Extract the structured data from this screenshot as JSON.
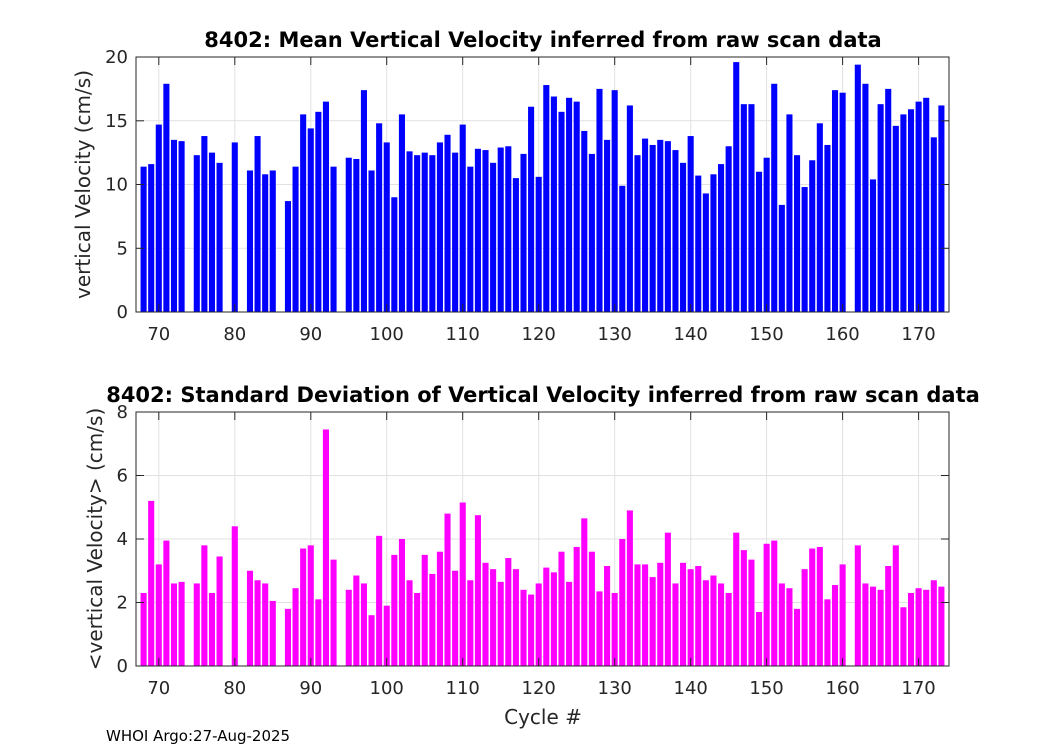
{
  "footer": "WHOI Argo:27-Aug-2025",
  "chart_data": [
    {
      "type": "bar",
      "title": "8402: Mean Vertical Velocity inferred from raw scan data",
      "xlabel": "",
      "ylabel": "vertical Velocity (cm/s)",
      "xlim": [
        67,
        174
      ],
      "ylim": [
        0,
        20
      ],
      "xticks": [
        70,
        80,
        90,
        100,
        110,
        120,
        130,
        140,
        150,
        160,
        170
      ],
      "yticks": [
        0,
        5,
        10,
        15,
        20
      ],
      "grid": true,
      "color": "#0000ff",
      "x": [
        68,
        69,
        70,
        71,
        72,
        73,
        75,
        76,
        77,
        78,
        80,
        82,
        83,
        84,
        85,
        87,
        88,
        89,
        90,
        91,
        92,
        93,
        95,
        96,
        97,
        98,
        99,
        100,
        101,
        102,
        103,
        104,
        105,
        106,
        107,
        108,
        109,
        110,
        111,
        112,
        113,
        114,
        115,
        116,
        117,
        118,
        119,
        120,
        121,
        122,
        123,
        124,
        125,
        126,
        127,
        128,
        129,
        130,
        131,
        132,
        133,
        134,
        135,
        136,
        137,
        138,
        139,
        140,
        141,
        142,
        143,
        144,
        145,
        146,
        147,
        148,
        149,
        150,
        151,
        152,
        153,
        154,
        155,
        156,
        157,
        158,
        159,
        160,
        162,
        163,
        164,
        165,
        166,
        167,
        168,
        169,
        170,
        171,
        172,
        173
      ],
      "values": [
        11.4,
        11.6,
        14.7,
        17.9,
        13.5,
        13.4,
        12.3,
        13.8,
        12.5,
        11.7,
        13.3,
        11.1,
        13.8,
        10.8,
        11.1,
        8.7,
        11.4,
        15.5,
        14.4,
        15.7,
        16.5,
        11.4,
        12.1,
        12.0,
        17.4,
        11.1,
        14.8,
        13.3,
        9.0,
        15.5,
        12.6,
        12.3,
        12.5,
        12.3,
        13.3,
        13.9,
        12.5,
        14.7,
        11.4,
        12.8,
        12.7,
        11.7,
        12.9,
        13.0,
        10.5,
        12.4,
        16.1,
        10.6,
        17.8,
        16.9,
        15.7,
        16.8,
        16.5,
        14.2,
        12.4,
        17.5,
        13.5,
        17.4,
        9.9,
        16.2,
        12.3,
        13.6,
        13.1,
        13.5,
        13.4,
        12.7,
        11.7,
        13.8,
        10.7,
        9.3,
        10.8,
        11.6,
        13.0,
        19.6,
        16.3,
        16.3,
        11.0,
        12.1,
        17.9,
        8.4,
        15.5,
        12.3,
        9.8,
        11.9,
        14.8,
        13.1,
        17.4,
        17.2,
        19.4,
        17.9,
        10.4,
        16.3,
        17.5,
        14.6,
        15.5,
        15.9,
        16.5,
        16.8,
        13.7,
        16.2
      ]
    },
    {
      "type": "bar",
      "title": "8402: Standard Deviation of Vertical Velocity inferred from raw scan data",
      "xlabel": "Cycle #",
      "ylabel": "<vertical Velocity> (cm/s)",
      "xlim": [
        67,
        174
      ],
      "ylim": [
        0,
        8
      ],
      "xticks": [
        70,
        80,
        90,
        100,
        110,
        120,
        130,
        140,
        150,
        160,
        170
      ],
      "yticks": [
        0,
        2,
        4,
        6,
        8
      ],
      "grid": true,
      "color": "#ff00ff",
      "x": [
        68,
        69,
        70,
        71,
        72,
        73,
        75,
        76,
        77,
        78,
        80,
        82,
        83,
        84,
        85,
        87,
        88,
        89,
        90,
        91,
        92,
        93,
        95,
        96,
        97,
        98,
        99,
        100,
        101,
        102,
        103,
        104,
        105,
        106,
        107,
        108,
        109,
        110,
        111,
        112,
        113,
        114,
        115,
        116,
        117,
        118,
        119,
        120,
        121,
        122,
        123,
        124,
        125,
        126,
        127,
        128,
        129,
        130,
        131,
        132,
        133,
        134,
        135,
        136,
        137,
        138,
        139,
        140,
        141,
        142,
        143,
        144,
        145,
        146,
        147,
        148,
        149,
        150,
        151,
        152,
        153,
        154,
        155,
        156,
        157,
        158,
        159,
        160,
        162,
        163,
        164,
        165,
        166,
        167,
        168,
        169,
        170,
        171,
        172,
        173
      ],
      "values": [
        2.3,
        5.2,
        3.2,
        3.95,
        2.6,
        2.65,
        2.6,
        3.8,
        2.3,
        3.45,
        4.4,
        3.0,
        2.7,
        2.6,
        2.05,
        1.8,
        2.45,
        3.7,
        3.8,
        2.1,
        7.45,
        3.35,
        2.4,
        2.85,
        2.6,
        1.6,
        4.1,
        1.9,
        3.5,
        4.0,
        2.7,
        2.3,
        3.5,
        2.9,
        3.6,
        4.8,
        3.0,
        5.15,
        2.7,
        4.75,
        3.25,
        3.05,
        2.65,
        3.4,
        3.05,
        2.4,
        2.25,
        2.6,
        3.1,
        2.95,
        3.6,
        2.65,
        3.75,
        4.65,
        3.6,
        2.35,
        3.15,
        2.3,
        4.0,
        4.9,
        3.2,
        3.2,
        2.8,
        3.25,
        4.2,
        2.6,
        3.25,
        3.05,
        3.15,
        2.7,
        2.85,
        2.6,
        2.3,
        4.2,
        3.65,
        3.35,
        1.7,
        3.85,
        3.95,
        2.6,
        2.45,
        1.8,
        3.05,
        3.7,
        3.75,
        2.1,
        2.55,
        3.2,
        3.8,
        2.6,
        2.5,
        2.4,
        3.15,
        3.8,
        1.85,
        2.3,
        2.45,
        2.4,
        2.7,
        2.5
      ]
    }
  ]
}
